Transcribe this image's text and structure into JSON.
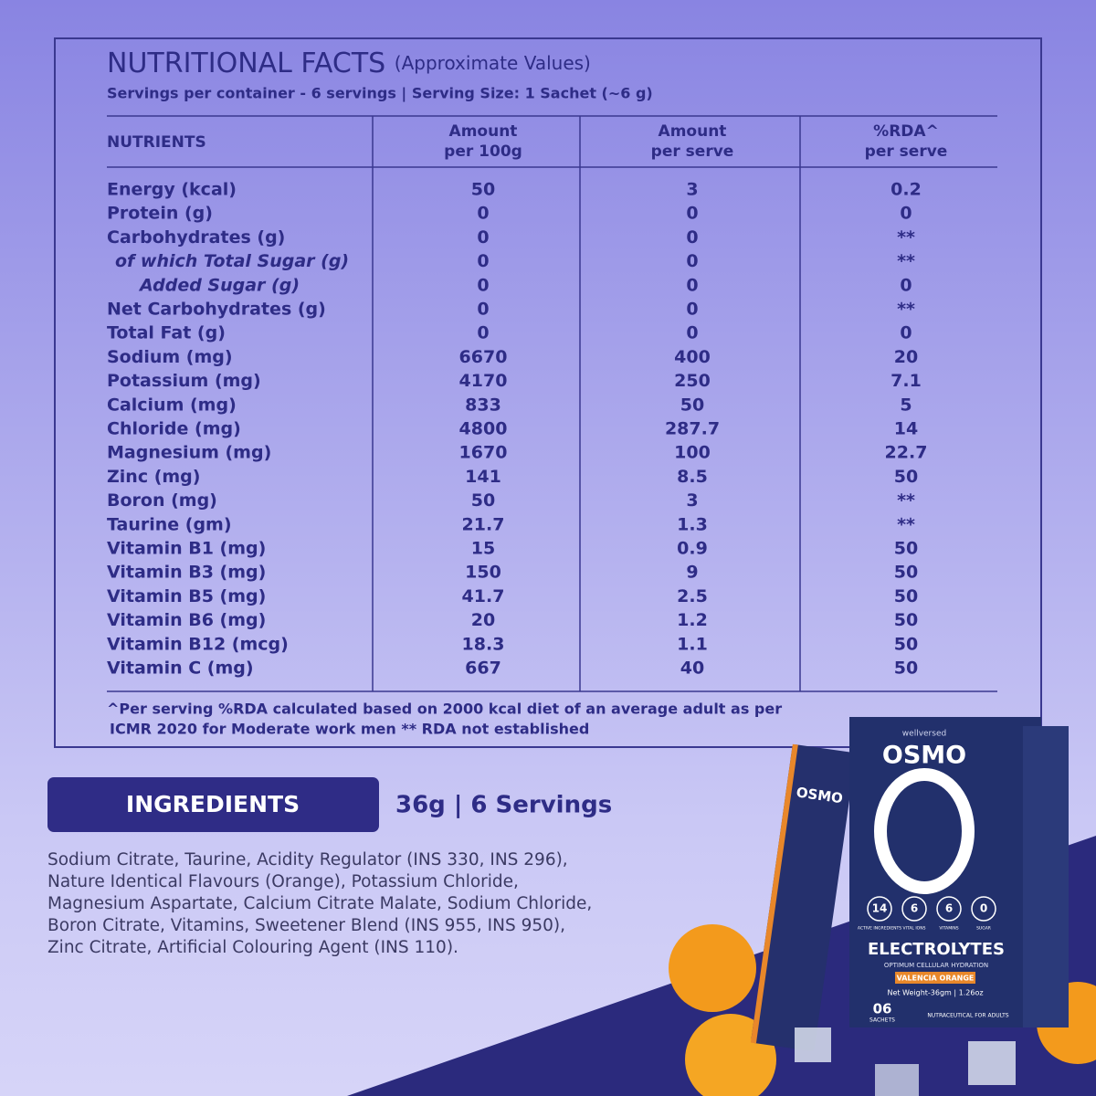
{
  "header": {
    "title": "NUTRITIONAL FACTS",
    "title_note": "(Approximate Values)",
    "servings": "Servings per container - 6 servings  | Serving Size: 1 Sachet (~6 g)"
  },
  "table": {
    "columns": [
      [
        "NUTRIENTS"
      ],
      [
        "Amount",
        "per 100g"
      ],
      [
        "Amount",
        "per serve"
      ],
      [
        "%RDA^",
        "per serve"
      ]
    ],
    "rows": [
      [
        "Energy (kcal)",
        "50",
        "3",
        "0.2"
      ],
      [
        "Protein (g)",
        "0",
        "0",
        "0"
      ],
      [
        "Carbohydrates (g)",
        "0",
        "0",
        "**"
      ],
      [
        "of which Total Sugar (g)",
        "0",
        "0",
        "**"
      ],
      [
        "Added Sugar (g)",
        "0",
        "0",
        "0"
      ],
      [
        "Net Carbohydrates (g)",
        "0",
        "0",
        "**"
      ],
      [
        "Total Fat (g)",
        "0",
        "0",
        "0"
      ],
      [
        "Sodium (mg)",
        "6670",
        "400",
        "20"
      ],
      [
        "Potassium  (mg)",
        "4170",
        "250",
        "7.1"
      ],
      [
        "Calcium  (mg)",
        "833",
        "50",
        "5"
      ],
      [
        "Chloride  (mg)",
        "4800",
        "287.7",
        "14"
      ],
      [
        "Magnesium (mg)",
        "1670",
        "100",
        "22.7"
      ],
      [
        "Zinc (mg)",
        "141",
        "8.5",
        "50"
      ],
      [
        "Boron (mg)",
        "50",
        "3",
        "**"
      ],
      [
        "Taurine (gm)",
        "21.7",
        "1.3",
        "**"
      ],
      [
        "Vitamin B1 (mg)",
        "15",
        "0.9",
        "50"
      ],
      [
        "Vitamin B3 (mg)",
        "150",
        "9",
        "50"
      ],
      [
        "Vitamin B5 (mg)",
        "41.7",
        "2.5",
        "50"
      ],
      [
        "Vitamin B6 (mg)",
        "20",
        "1.2",
        "50"
      ],
      [
        "Vitamin B12 (mcg)",
        "18.3",
        "1.1",
        "50"
      ],
      [
        "Vitamin C (mg)",
        "667",
        "40",
        "50"
      ]
    ],
    "footnote": [
      "^Per serving %RDA calculated based on 2000 kcal diet of an average adult as per",
      "ICMR  2020 for Moderate work men ** RDA not established"
    ]
  },
  "ingredients": {
    "label": "INGREDIENTS",
    "pack": "36g | 6 Servings",
    "lines": [
      "Sodium Citrate, Taurine, Acidity Regulator (INS 330, INS 296),",
      "Nature Identical Flavours (Orange), Potassium Chloride,",
      "Magnesium Aspartate, Calcium Citrate Malate, Sodium Chloride,",
      "Boron Citrate, Vitamins, Sweetener Blend (INS 955, INS 950),",
      "Zinc Citrate,  Artificial Colouring Agent (INS 110)."
    ]
  },
  "product": {
    "brand": "wellversed",
    "name": "OSMO",
    "product": "ELECTROLYTES",
    "tagline": "OPTIMUM CELLULAR HYDRATION",
    "flavour": "VALENCIA ORANGE",
    "weight": "Net Weight-36gm | 1.26oz",
    "count": "06",
    "count_label": "SACHETS",
    "category": "NUTRACEUTICAL FOR ADULTS",
    "badges": [
      [
        "14",
        "ACTIVE INGREDIENTS"
      ],
      [
        "6",
        "VITAL IONS"
      ],
      [
        "6",
        "VITAMINS"
      ],
      [
        "0",
        "SUGAR"
      ]
    ]
  }
}
